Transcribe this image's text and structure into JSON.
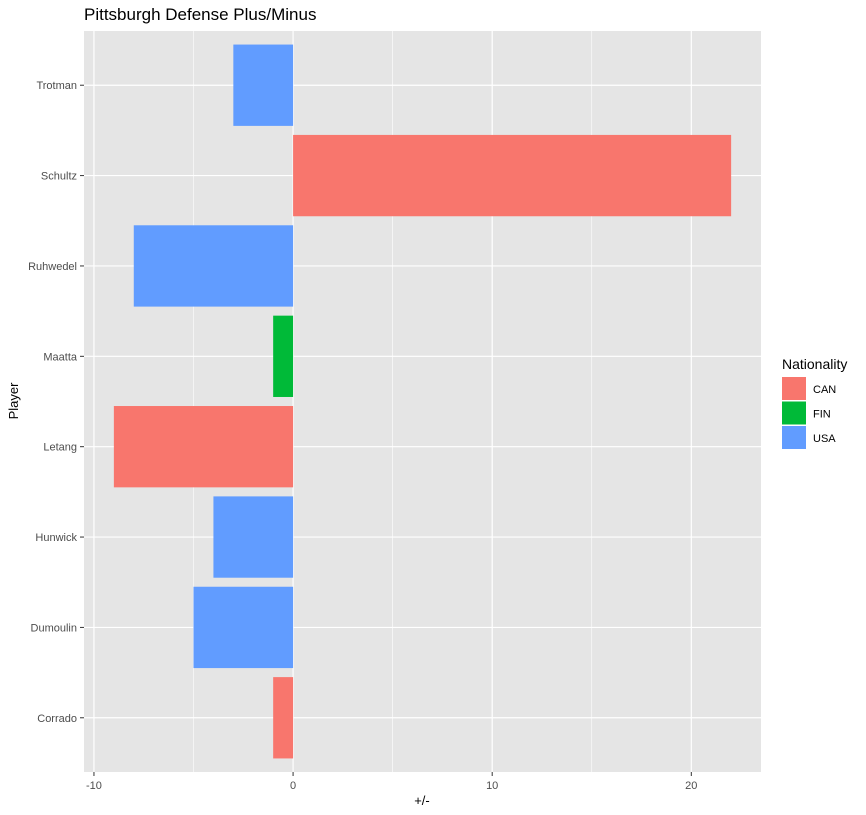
{
  "chart_data": {
    "type": "bar",
    "orientation": "horizontal",
    "title": "Pittsburgh Defense Plus/Minus",
    "xlabel": "+/-",
    "ylabel": "Player",
    "categories": [
      "Corrado",
      "Dumoulin",
      "Hunwick",
      "Letang",
      "Maatta",
      "Ruhwedel",
      "Schultz",
      "Trotman"
    ],
    "values": [
      -1,
      -5,
      -4,
      -9,
      -1,
      -8,
      22,
      -3
    ],
    "nationality": [
      "CAN",
      "USA",
      "USA",
      "CAN",
      "FIN",
      "USA",
      "CAN",
      "USA"
    ],
    "xlim": [
      -10.5,
      23.5
    ],
    "xticks": [
      -10,
      0,
      10,
      20
    ],
    "grid": true,
    "legend": {
      "title": "Nationality",
      "position": "right",
      "entries": [
        {
          "label": "CAN",
          "color": "#F8766D"
        },
        {
          "label": "FIN",
          "color": "#00BA38"
        },
        {
          "label": "USA",
          "color": "#619CFF"
        }
      ]
    },
    "colors": {
      "panel": "#E5E5E5",
      "grid": "#FFFFFF"
    }
  }
}
